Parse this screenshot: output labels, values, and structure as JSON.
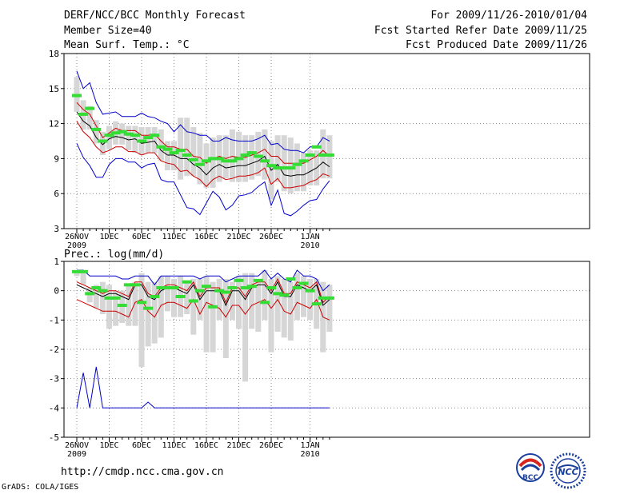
{
  "header": {
    "title": "DERF/NCC/BCC Monthly Forecast",
    "member_size": "Member Size=40",
    "period": "For 2009/11/26-2010/01/04",
    "started": "Fcst Started Refer Date 2009/11/25",
    "produced": "Fcst Produced Date 2009/11/26"
  },
  "footer": {
    "url": "http://cmdp.ncc.cma.gov.cn",
    "credit": "GrADS: COLA/IGES",
    "logo1_text": "BCC",
    "logo2_text": "NCC"
  },
  "colors": {
    "envelope": "#0000cc",
    "spread": "#cc0000",
    "mean": "#000000",
    "median_marker": "#33dd33",
    "range_bar": "#d6d6d6",
    "grid": "#888888"
  },
  "chart_data": [
    {
      "type": "line",
      "title": "Mean Surf. Temp.: °C",
      "ylim": [
        3,
        18
      ],
      "yticks": [
        3,
        6,
        9,
        12,
        15,
        18
      ],
      "xticks": [
        {
          "day": 0,
          "label": "26NOV",
          "sub": "2009"
        },
        {
          "day": 5,
          "label": "1DEC",
          "sub": ""
        },
        {
          "day": 10,
          "label": "6DEC",
          "sub": ""
        },
        {
          "day": 15,
          "label": "11DEC",
          "sub": ""
        },
        {
          "day": 20,
          "label": "16DEC",
          "sub": ""
        },
        {
          "day": 25,
          "label": "21DEC",
          "sub": ""
        },
        {
          "day": 30,
          "label": "26DEC",
          "sub": ""
        },
        {
          "day": 36,
          "label": "1JAN",
          "sub": "2010"
        }
      ],
      "bar_top": [
        16.0,
        14.0,
        13.5,
        12.3,
        11.3,
        11.8,
        12.2,
        12.0,
        11.8,
        11.8,
        11.7,
        11.7,
        11.7,
        11.5,
        10.5,
        10.5,
        12.5,
        12.5,
        11.7,
        11.2,
        10.3,
        10.8,
        11.0,
        11.0,
        11.5,
        11.3,
        11.0,
        11.0,
        11.3,
        11.5,
        10.5,
        11.0,
        11.0,
        10.8,
        10.3,
        9.5,
        9.7,
        9.7,
        11.5,
        11.0
      ],
      "bar_bottom": [
        13.0,
        11.5,
        11.5,
        10.3,
        9.3,
        9.8,
        10.2,
        10.2,
        9.7,
        9.5,
        9.3,
        9.5,
        9.5,
        8.8,
        8.0,
        8.0,
        7.2,
        7.5,
        7.5,
        6.8,
        6.5,
        6.5,
        7.0,
        7.3,
        7.0,
        7.0,
        7.0,
        7.2,
        7.5,
        7.2,
        5.5,
        7.0,
        6.2,
        6.0,
        6.2,
        6.2,
        6.7,
        6.7,
        7.3,
        7.3
      ],
      "series": [
        {
          "name": "ensemble max",
          "role": "upper_envelope",
          "values": [
            16.5,
            15.0,
            15.5,
            13.8,
            12.8,
            12.9,
            13.0,
            12.6,
            12.6,
            12.6,
            12.9,
            12.6,
            12.5,
            12.2,
            12.0,
            11.3,
            11.9,
            11.3,
            11.2,
            11.0,
            11.0,
            10.5,
            10.5,
            10.8,
            10.6,
            10.5,
            10.5,
            10.5,
            10.7,
            11.0,
            10.2,
            10.3,
            9.8,
            9.7,
            9.7,
            9.5,
            10.0,
            10.0,
            10.8,
            10.5
          ]
        },
        {
          "name": "mean + sd",
          "role": "upper_spread",
          "values": [
            13.8,
            13.2,
            12.8,
            11.8,
            10.8,
            11.2,
            11.6,
            11.4,
            11.4,
            11.4,
            11.0,
            11.0,
            11.1,
            10.5,
            10.0,
            10.0,
            9.8,
            9.8,
            9.2,
            9.1,
            8.6,
            9.0,
            9.2,
            9.0,
            9.2,
            9.1,
            9.1,
            9.3,
            9.5,
            9.8,
            9.2,
            9.2,
            8.6,
            8.6,
            8.6,
            8.6,
            8.9,
            9.2,
            9.7,
            9.2
          ]
        },
        {
          "name": "ensemble mean",
          "role": "mean",
          "values": [
            13.0,
            12.2,
            11.8,
            10.8,
            10.2,
            10.7,
            10.9,
            10.8,
            10.6,
            10.7,
            10.3,
            10.4,
            10.5,
            9.7,
            9.3,
            9.3,
            9.0,
            9.0,
            8.5,
            8.2,
            7.6,
            8.2,
            8.5,
            8.2,
            8.3,
            8.4,
            8.4,
            8.6,
            8.8,
            9.2,
            8.0,
            8.5,
            7.6,
            7.5,
            7.6,
            7.6,
            7.9,
            8.2,
            8.7,
            8.3
          ]
        },
        {
          "name": "mean - sd",
          "role": "lower_spread",
          "values": [
            12.2,
            11.3,
            10.8,
            10.0,
            9.5,
            9.7,
            10.0,
            10.0,
            9.6,
            9.6,
            9.3,
            9.5,
            9.5,
            8.8,
            8.6,
            8.5,
            7.9,
            8.0,
            7.5,
            7.2,
            6.6,
            7.2,
            7.5,
            7.2,
            7.3,
            7.5,
            7.5,
            7.6,
            7.8,
            8.2,
            6.8,
            7.3,
            6.5,
            6.5,
            6.6,
            6.7,
            7.0,
            7.2,
            7.7,
            7.5
          ]
        },
        {
          "name": "ensemble min",
          "role": "lower_envelope",
          "values": [
            10.3,
            9.1,
            8.4,
            7.4,
            7.4,
            8.5,
            9.0,
            9.0,
            8.7,
            8.7,
            8.2,
            8.5,
            8.6,
            7.2,
            7.0,
            7.0,
            5.9,
            4.8,
            4.7,
            4.2,
            5.2,
            6.2,
            5.7,
            4.6,
            5.0,
            5.8,
            5.9,
            6.1,
            6.6,
            7.0,
            5.0,
            6.3,
            4.3,
            4.1,
            4.5,
            5.0,
            5.4,
            5.5,
            6.4,
            7.1
          ]
        },
        {
          "name": "median",
          "role": "marker",
          "values": [
            14.4,
            12.8,
            13.3,
            11.5,
            10.5,
            11.0,
            11.2,
            11.3,
            11.1,
            11.0,
            10.5,
            10.8,
            11.0,
            10.0,
            9.8,
            9.5,
            9.7,
            9.3,
            8.9,
            8.5,
            8.8,
            9.0,
            9.0,
            8.8,
            8.8,
            9.0,
            9.3,
            9.5,
            9.2,
            8.8,
            8.4,
            8.2,
            8.2,
            8.2,
            8.5,
            8.8,
            9.3,
            10.0,
            9.3,
            9.3
          ]
        }
      ]
    },
    {
      "type": "line",
      "title": "Prec.: log(mm/d)",
      "ylim": [
        -5,
        1
      ],
      "yticks": [
        -5,
        -4,
        -3,
        -2,
        -1,
        0,
        1
      ],
      "xticks": [
        {
          "day": 0,
          "label": "26NOV",
          "sub": "2009"
        },
        {
          "day": 5,
          "label": "1DEC",
          "sub": ""
        },
        {
          "day": 10,
          "label": "6DEC",
          "sub": ""
        },
        {
          "day": 15,
          "label": "11DEC",
          "sub": ""
        },
        {
          "day": 20,
          "label": "16DEC",
          "sub": ""
        },
        {
          "day": 25,
          "label": "21DEC",
          "sub": ""
        },
        {
          "day": 30,
          "label": "26DEC",
          "sub": ""
        },
        {
          "day": 36,
          "label": "1JAN",
          "sub": "2010"
        }
      ],
      "bar_top": [
        0.7,
        0.7,
        0.1,
        0.2,
        0.3,
        0.2,
        0.0,
        0.0,
        0.2,
        0.3,
        0.6,
        0.3,
        0.3,
        0.5,
        0.5,
        0.4,
        0.5,
        0.3,
        0.4,
        0.4,
        0.5,
        0.3,
        0.4,
        0.4,
        0.3,
        0.5,
        0.6,
        0.6,
        0.4,
        0.7,
        0.4,
        0.5,
        0.4,
        0.3,
        0.6,
        0.5,
        0.4,
        0.4,
        0.3,
        0.2
      ],
      "bar_bottom": [
        0.5,
        0.2,
        -0.4,
        -0.6,
        -0.8,
        -1.3,
        -1.2,
        -1.1,
        -1.2,
        -1.2,
        -2.6,
        -1.9,
        -1.8,
        -1.6,
        -0.7,
        -0.9,
        -0.9,
        -0.8,
        -1.5,
        -1.0,
        -2.1,
        -2.1,
        -1.0,
        -2.3,
        -1.0,
        -1.3,
        -3.1,
        -1.3,
        -1.4,
        -1.0,
        -2.1,
        -1.4,
        -1.6,
        -1.7,
        -1.0,
        -0.9,
        -1.0,
        -1.3,
        -2.1,
        -1.4
      ],
      "series": [
        {
          "name": "ensemble max",
          "role": "upper_envelope",
          "values": [
            0.7,
            0.7,
            0.5,
            0.5,
            0.5,
            0.5,
            0.5,
            0.4,
            0.4,
            0.5,
            0.5,
            0.5,
            0.2,
            0.5,
            0.5,
            0.5,
            0.5,
            0.5,
            0.5,
            0.4,
            0.5,
            0.5,
            0.5,
            0.3,
            0.4,
            0.5,
            0.5,
            0.5,
            0.5,
            0.7,
            0.4,
            0.6,
            0.4,
            0.3,
            0.7,
            0.5,
            0.5,
            0.4,
            0.0,
            0.2
          ]
        },
        {
          "name": "mean + sd",
          "role": "upper_spread",
          "values": [
            0.3,
            0.2,
            0.1,
            0.0,
            -0.1,
            0.0,
            0.0,
            -0.1,
            -0.2,
            0.3,
            0.3,
            -0.1,
            -0.2,
            0.1,
            0.2,
            0.2,
            0.1,
            0.0,
            0.3,
            -0.2,
            0.1,
            0.1,
            0.1,
            -0.4,
            0.1,
            0.1,
            -0.2,
            0.2,
            0.3,
            0.3,
            0.0,
            0.4,
            -0.1,
            -0.1,
            0.3,
            0.2,
            0.1,
            0.3,
            -0.4,
            -0.2
          ]
        },
        {
          "name": "ensemble mean",
          "role": "mean",
          "values": [
            0.2,
            0.1,
            0.0,
            -0.1,
            -0.2,
            -0.1,
            -0.1,
            -0.2,
            -0.3,
            0.2,
            0.2,
            -0.2,
            -0.3,
            0.0,
            0.1,
            0.1,
            0.0,
            -0.1,
            0.2,
            -0.3,
            0.0,
            0.0,
            0.0,
            -0.5,
            0.0,
            0.0,
            -0.3,
            0.1,
            0.2,
            0.2,
            -0.1,
            0.3,
            -0.2,
            -0.2,
            0.2,
            0.1,
            0.0,
            0.2,
            -0.5,
            -0.3
          ]
        },
        {
          "name": "mean - sd",
          "role": "lower_spread",
          "values": [
            -0.3,
            -0.4,
            -0.5,
            -0.6,
            -0.7,
            -0.7,
            -0.7,
            -0.8,
            -0.9,
            -0.4,
            -0.3,
            -0.7,
            -0.9,
            -0.5,
            -0.4,
            -0.4,
            -0.5,
            -0.6,
            -0.3,
            -0.8,
            -0.4,
            -0.5,
            -0.6,
            -0.9,
            -0.5,
            -0.5,
            -0.8,
            -0.5,
            -0.4,
            -0.3,
            -0.6,
            -0.3,
            -0.7,
            -0.8,
            -0.4,
            -0.5,
            -0.6,
            -0.3,
            -0.9,
            -1.0
          ]
        },
        {
          "name": "ensemble min",
          "role": "lower_envelope",
          "values": [
            -4.0,
            -2.8,
            -4.0,
            -2.6,
            -4.0,
            -4.0,
            -4.0,
            -4.0,
            -4.0,
            -4.0,
            -4.0,
            -3.8,
            -4.0,
            -4.0,
            -4.0,
            -4.0,
            -4.0,
            -4.0,
            -4.0,
            -4.0,
            -4.0,
            -4.0,
            -4.0,
            -4.0,
            -4.0,
            -4.0,
            -4.0,
            -4.0,
            -4.0,
            -4.0,
            -4.0,
            -4.0,
            -4.0,
            -4.0,
            -4.0,
            -4.0,
            -4.0,
            -4.0,
            -4.0,
            -4.0
          ]
        },
        {
          "name": "median",
          "role": "marker",
          "values": [
            0.65,
            0.65,
            -0.1,
            0.1,
            0.0,
            -0.25,
            -0.25,
            -0.5,
            0.2,
            0.2,
            -0.4,
            -0.6,
            -0.2,
            0.1,
            0.1,
            0.1,
            -0.2,
            0.3,
            -0.35,
            0.0,
            0.15,
            -0.55,
            0.0,
            -0.05,
            0.1,
            0.35,
            0.1,
            0.15,
            0.35,
            -0.4,
            0.1,
            -0.1,
            -0.15,
            0.4,
            0.1,
            0.25,
            0.0,
            -0.45,
            -0.25,
            -0.25
          ]
        }
      ]
    }
  ]
}
